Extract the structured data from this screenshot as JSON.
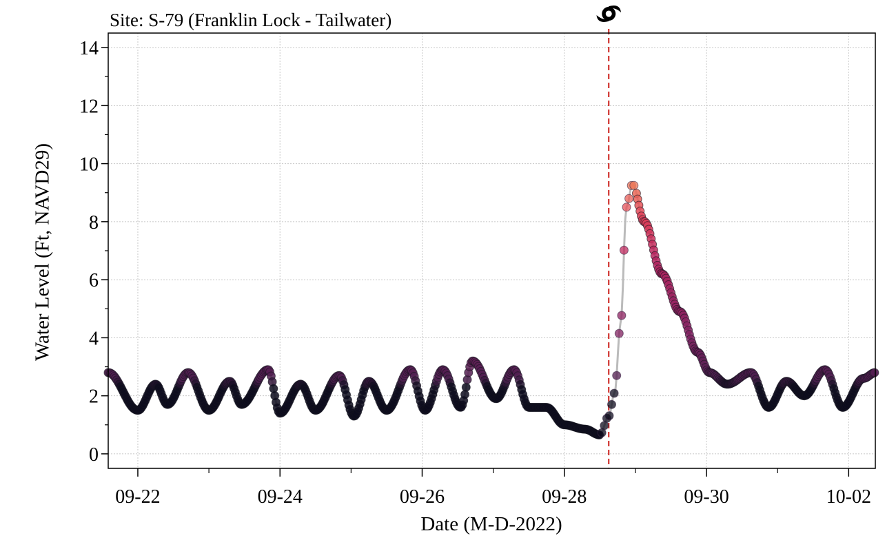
{
  "chart_data": {
    "type": "scatter",
    "title": "Site: S-79 (Franklin Lock - Tailwater)",
    "xlabel": "Date (M-D-2022)",
    "ylabel": "Water Level (Ft, NAVD29)",
    "x_ticks": [
      "09-22",
      "09-24",
      "09-26",
      "09-28",
      "09-30",
      "10-02"
    ],
    "y_ticks": [
      0,
      2,
      4,
      6,
      8,
      10,
      12,
      14
    ],
    "xlim": [
      "2022-09-21T14:00",
      "2022-10-02T09:00"
    ],
    "ylim": [
      -0.5,
      14.5
    ],
    "grid": true,
    "landfall_marker": {
      "x": "2022-09-28T15:00",
      "color": "#cc1f1a",
      "style": "dashed",
      "icon": "hurricane-icon"
    },
    "color_scale": {
      "name": "magma-like",
      "stops": [
        "#0d0c1d",
        "#4d1f4f",
        "#7e2160",
        "#b8245f",
        "#e3445a",
        "#ef7757"
      ]
    },
    "series": [
      {
        "x": [
          "2022-09-21T14:00",
          "2022-09-22T00:00",
          "2022-09-22T06:00",
          "2022-09-22T10:00",
          "2022-09-22T17:00",
          "2022-09-23T00:00",
          "2022-09-23T07:00",
          "2022-09-23T11:00",
          "2022-09-23T20:00",
          "2022-09-24T00:00",
          "2022-09-24T07:00",
          "2022-09-24T12:00",
          "2022-09-24T20:00",
          "2022-09-25T01:00",
          "2022-09-25T06:00",
          "2022-09-25T12:00",
          "2022-09-25T20:00",
          "2022-09-26T01:00",
          "2022-09-26T07:00",
          "2022-09-26T13:00",
          "2022-09-26T17:00",
          "2022-09-27T01:00",
          "2022-09-27T07:00",
          "2022-09-27T12:00",
          "2022-09-27T18:00",
          "2022-09-28T00:00",
          "2022-09-28T07:00",
          "2022-09-28T12:00",
          "2022-09-28T15:00",
          "2022-09-28T17:00",
          "2022-09-28T19:00",
          "2022-09-28T21:00",
          "2022-09-28T23:00",
          "2022-09-29T03:00",
          "2022-09-29T09:00",
          "2022-09-29T15:00",
          "2022-09-29T21:00",
          "2022-09-30T01:00",
          "2022-09-30T07:00",
          "2022-09-30T15:00",
          "2022-09-30T21:00",
          "2022-10-01T03:00",
          "2022-10-01T09:00",
          "2022-10-01T16:00",
          "2022-10-01T22:00",
          "2022-10-02T05:00",
          "2022-10-02T09:00"
        ],
        "y": [
          2.8,
          1.5,
          2.4,
          1.7,
          2.8,
          1.5,
          2.5,
          1.7,
          2.9,
          1.4,
          2.4,
          1.5,
          2.7,
          1.3,
          2.5,
          1.5,
          2.9,
          1.5,
          2.9,
          1.6,
          3.2,
          1.9,
          2.9,
          1.6,
          1.6,
          1.0,
          0.85,
          0.65,
          1.3,
          2.1,
          4.5,
          8.5,
          9.3,
          8.0,
          6.2,
          4.9,
          3.5,
          2.8,
          2.4,
          2.8,
          1.6,
          2.5,
          2.0,
          2.9,
          1.6,
          2.6,
          2.8
        ]
      }
    ]
  }
}
